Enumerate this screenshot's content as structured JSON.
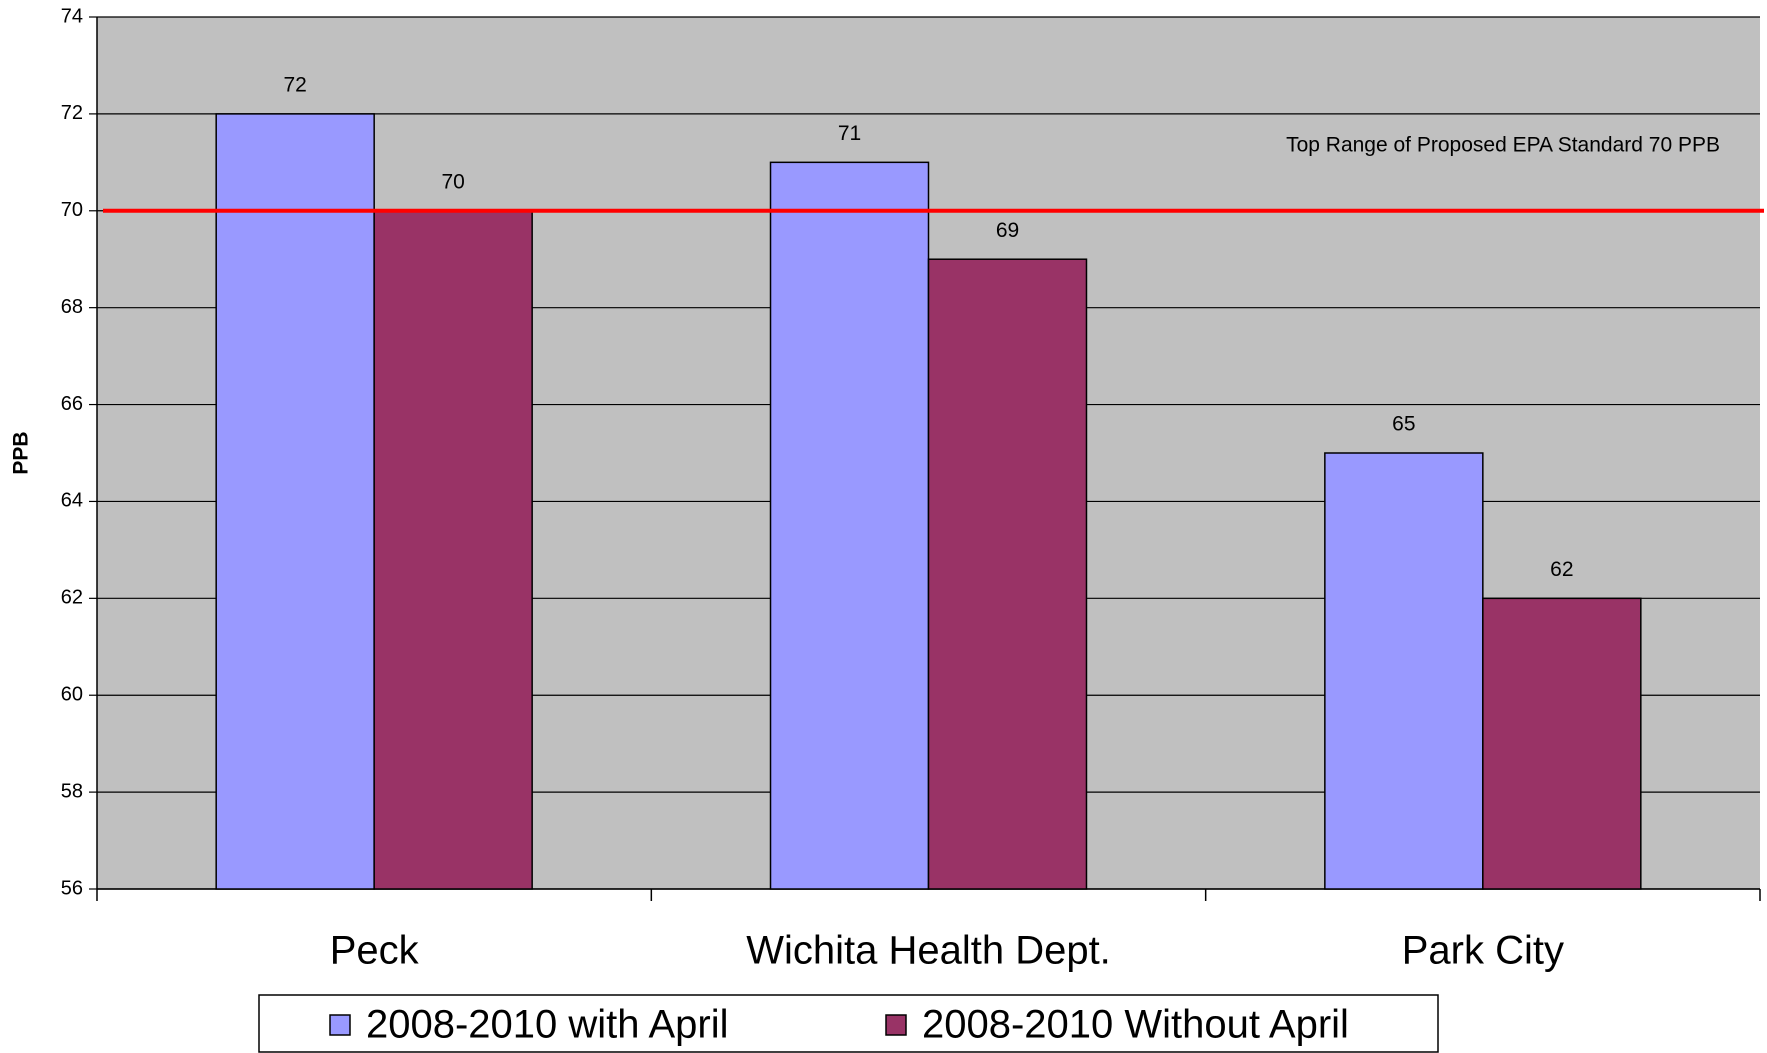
{
  "chart_data": {
    "type": "bar",
    "y_label": "PPB",
    "categories": [
      "Peck",
      "Wichita Health Dept.",
      "Park City"
    ],
    "series": [
      {
        "name": "2008-2010 with April",
        "color": "#9999ff",
        "values": [
          72,
          71,
          65
        ]
      },
      {
        "name": "2008-2010 Without April",
        "color": "#993366",
        "values": [
          70,
          69,
          62
        ]
      }
    ],
    "ylim": [
      56,
      74
    ],
    "yticks": [
      56,
      58,
      60,
      62,
      64,
      66,
      68,
      70,
      72,
      74
    ],
    "grid": true,
    "plot_background": "#c0c0c0",
    "reference_line": {
      "value": 70,
      "label": "Top Range of Proposed EPA Standard 70 PPB",
      "color": "#ff0000"
    },
    "legend": "bottom"
  }
}
